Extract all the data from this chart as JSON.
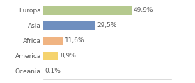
{
  "categories": [
    "Europa",
    "Asia",
    "Africa",
    "America",
    "Oceania"
  ],
  "values": [
    49.9,
    29.5,
    11.6,
    8.9,
    0.1
  ],
  "labels": [
    "49,9%",
    "29,5%",
    "11,6%",
    "8,9%",
    "0,1%"
  ],
  "bar_colors": [
    "#b5c98e",
    "#6f8fbf",
    "#f0b482",
    "#f5d36e",
    "#d0d0d0"
  ],
  "background_color": "#ffffff",
  "text_color": "#555555",
  "label_fontsize": 6.5,
  "category_fontsize": 6.5,
  "bar_height": 0.55,
  "xlim": [
    0,
    72
  ],
  "figsize": [
    2.8,
    1.2
  ],
  "dpi": 100
}
